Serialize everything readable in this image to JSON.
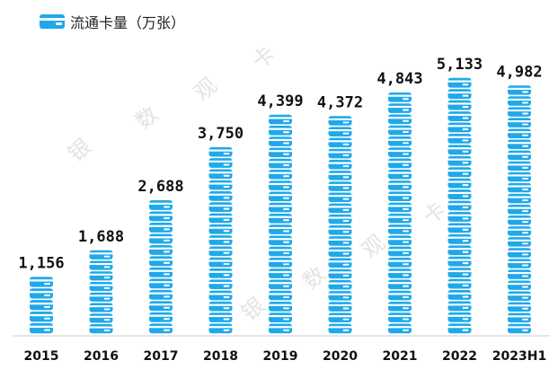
{
  "legend": {
    "label": "流通卡量（万张）",
    "icon": "card-icon"
  },
  "watermark": [
    "银",
    "数",
    "观",
    "卡"
  ],
  "colors": {
    "bar": "#1ea9ea",
    "card_stripe": "#ffffff",
    "axis": "#cccccc",
    "text": "#111111"
  },
  "chart_data": {
    "type": "bar",
    "categories": [
      "2015",
      "2016",
      "2017",
      "2018",
      "2019",
      "2020",
      "2021",
      "2022",
      "2023H1"
    ],
    "series": [
      {
        "values": [
          1156,
          1688,
          2688,
          3750,
          4399,
          4372,
          4843,
          5133,
          4982
        ],
        "labels": [
          "1,156",
          "1,688",
          "2,688",
          "3,750",
          "4,399",
          "4,372",
          "4,843",
          "5,133",
          "4,982"
        ]
      }
    ],
    "ylim": [
      0,
      5133
    ],
    "grid": false,
    "legend": "top-left"
  }
}
